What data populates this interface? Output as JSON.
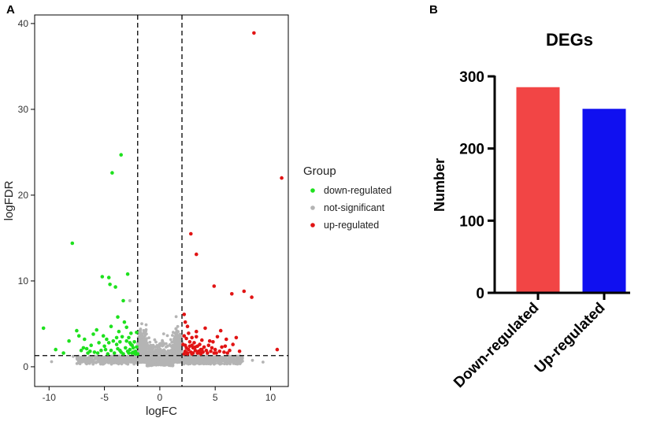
{
  "panel_a_label": "A",
  "panel_b_label": "B",
  "chart_data": [
    {
      "type": "scatter",
      "title": "",
      "xlabel": "logFC",
      "ylabel": "logFDR",
      "xlim": [
        -11.3,
        11.6
      ],
      "ylim": [
        -2.3,
        41
      ],
      "xticks": [
        -10,
        -5,
        0,
        5,
        10
      ],
      "yticks": [
        0,
        10,
        20,
        30,
        40
      ],
      "grid": false,
      "thresholds": {
        "logFC": [
          -2,
          2
        ],
        "logFDR": 1.3
      },
      "legend": {
        "title": "Group",
        "position": "right",
        "entries": [
          {
            "label": "down-regulated",
            "color": "#1ee11e"
          },
          {
            "label": "not-significant",
            "color": "#b4b4b4"
          },
          {
            "label": "up-regulated",
            "color": "#e11414"
          }
        ]
      },
      "series": [
        {
          "name": "down-regulated",
          "color": "#1ee11e",
          "points": [
            [
              -10.5,
              4.5
            ],
            [
              -7.9,
              14.4
            ],
            [
              -7.5,
              4.2
            ],
            [
              -7.3,
              3.6
            ],
            [
              -6.9,
              2.2
            ],
            [
              -6.6,
              2.1
            ],
            [
              -6.2,
              2.5
            ],
            [
              -6.0,
              3.8
            ],
            [
              -5.7,
              4.3
            ],
            [
              -5.5,
              2.8
            ],
            [
              -5.2,
              10.5
            ],
            [
              -5.0,
              2.4
            ],
            [
              -4.8,
              3.2
            ],
            [
              -4.6,
              10.4
            ],
            [
              -4.5,
              9.6
            ],
            [
              -4.4,
              4.7
            ],
            [
              -4.3,
              22.6
            ],
            [
              -4.2,
              3.0
            ],
            [
              -4.0,
              9.3
            ],
            [
              -3.9,
              2.6
            ],
            [
              -3.8,
              5.8
            ],
            [
              -3.7,
              4.1
            ],
            [
              -3.6,
              1.9
            ],
            [
              -3.5,
              24.7
            ],
            [
              -3.4,
              3.5
            ],
            [
              -3.3,
              7.7
            ],
            [
              -3.2,
              5.2
            ],
            [
              -3.1,
              2.2
            ],
            [
              -3.0,
              4.6
            ],
            [
              -2.9,
              10.8
            ],
            [
              -2.8,
              3.4
            ],
            [
              -2.7,
              2.0
            ],
            [
              -2.6,
              3.9
            ],
            [
              -2.5,
              2.5
            ],
            [
              -2.4,
              1.7
            ],
            [
              -2.3,
              2.9
            ],
            [
              -2.2,
              1.8
            ],
            [
              -2.1,
              2.3
            ],
            [
              -9.4,
              2.0
            ],
            [
              -8.7,
              1.6
            ],
            [
              -8.2,
              3.0
            ],
            [
              -6.5,
              1.6
            ],
            [
              -5.9,
              1.7
            ],
            [
              -5.3,
              1.9
            ],
            [
              -4.7,
              1.5
            ],
            [
              -4.1,
              1.6
            ],
            [
              -3.6,
              2.9
            ],
            [
              -3.3,
              1.5
            ],
            [
              -2.8,
              1.6
            ],
            [
              -2.5,
              1.6
            ],
            [
              -2.2,
              1.5
            ],
            [
              -2.6,
              2.6
            ],
            [
              -3.0,
              3.0
            ],
            [
              -3.8,
              2.1
            ],
            [
              -4.9,
              2.0
            ],
            [
              -6.3,
              1.8
            ],
            [
              -7.1,
              1.9
            ],
            [
              -5.6,
              1.6
            ],
            [
              -4.4,
              1.9
            ],
            [
              -2.9,
              1.8
            ],
            [
              -2.4,
              2.2
            ],
            [
              -3.5,
              1.7
            ],
            [
              -2.7,
              2.8
            ],
            [
              -2.3,
              1.6
            ],
            [
              -3.9,
              3.4
            ],
            [
              -4.6,
              2.8
            ],
            [
              -5.1,
              3.6
            ],
            [
              -6.8,
              3.2
            ],
            [
              -2.1,
              4.0
            ],
            [
              -2.0,
              1.5
            ]
          ]
        },
        {
          "name": "up-regulated",
          "color": "#e11414",
          "points": [
            [
              8.5,
              38.9
            ],
            [
              11.0,
              22.0
            ],
            [
              2.8,
              15.5
            ],
            [
              3.3,
              13.1
            ],
            [
              4.9,
              9.4
            ],
            [
              6.5,
              8.5
            ],
            [
              7.6,
              8.8
            ],
            [
              8.3,
              8.1
            ],
            [
              10.6,
              2.0
            ],
            [
              2.2,
              6.1
            ],
            [
              2.3,
              5.2
            ],
            [
              2.5,
              4.7
            ],
            [
              2.6,
              3.9
            ],
            [
              2.4,
              3.3
            ],
            [
              2.7,
              2.9
            ],
            [
              2.9,
              2.5
            ],
            [
              3.0,
              2.2
            ],
            [
              3.1,
              2.8
            ],
            [
              3.2,
              1.9
            ],
            [
              3.3,
              3.5
            ],
            [
              3.4,
              2.4
            ],
            [
              3.5,
              1.8
            ],
            [
              3.6,
              2.6
            ],
            [
              3.7,
              2.0
            ],
            [
              3.8,
              3.1
            ],
            [
              3.9,
              1.7
            ],
            [
              4.0,
              2.3
            ],
            [
              4.2,
              1.9
            ],
            [
              4.4,
              2.5
            ],
            [
              4.6,
              1.8
            ],
            [
              4.8,
              2.9
            ],
            [
              5.0,
              2.0
            ],
            [
              5.2,
              3.5
            ],
            [
              5.4,
              1.8
            ],
            [
              5.6,
              2.3
            ],
            [
              5.8,
              1.7
            ],
            [
              6.0,
              3.2
            ],
            [
              6.3,
              1.9
            ],
            [
              6.6,
              2.6
            ],
            [
              6.9,
              3.4
            ],
            [
              7.2,
              1.8
            ],
            [
              2.1,
              2.6
            ],
            [
              2.2,
              3.6
            ],
            [
              2.3,
              1.8
            ],
            [
              2.4,
              2.2
            ],
            [
              2.5,
              1.6
            ],
            [
              2.6,
              2.0
            ],
            [
              2.8,
              1.7
            ],
            [
              2.9,
              3.4
            ],
            [
              3.0,
              1.6
            ],
            [
              3.2,
              2.3
            ],
            [
              3.4,
              1.6
            ],
            [
              3.6,
              1.7
            ],
            [
              3.8,
              2.0
            ],
            [
              4.1,
              4.5
            ],
            [
              4.3,
              1.6
            ],
            [
              4.5,
              3.0
            ],
            [
              4.7,
              2.2
            ],
            [
              5.1,
              1.6
            ],
            [
              5.5,
              4.2
            ],
            [
              6.1,
              1.6
            ],
            [
              3.3,
              4.1
            ],
            [
              2.5,
              1.5
            ],
            [
              2.9,
              1.5
            ],
            [
              3.7,
              1.5
            ],
            [
              4.9,
              1.6
            ],
            [
              5.9,
              2.4
            ],
            [
              2.7,
              2.4
            ],
            [
              2.3,
              2.5
            ],
            [
              2.2,
              1.5
            ]
          ]
        },
        {
          "name": "not-significant",
          "color": "#b4b4b4",
          "description": "dense cloud of several thousand genes near the origin: logFC roughly -7 to 8, logFDR mostly below 1.3, plus points with |logFC| < 2 up to about 6; also gray points at (-2.9, 10.8) and (-2.7, 7.7)"
        }
      ]
    },
    {
      "type": "bar",
      "title": "DEGs",
      "xlabel": "",
      "ylabel": "Number",
      "categories": [
        "Down-regulated",
        "Up-regulated"
      ],
      "values": [
        285,
        255
      ],
      "colors": [
        "#f24545",
        "#1010f0"
      ],
      "ylim": [
        0,
        300
      ],
      "yticks": [
        0,
        100,
        200,
        300
      ],
      "grid": false
    }
  ]
}
